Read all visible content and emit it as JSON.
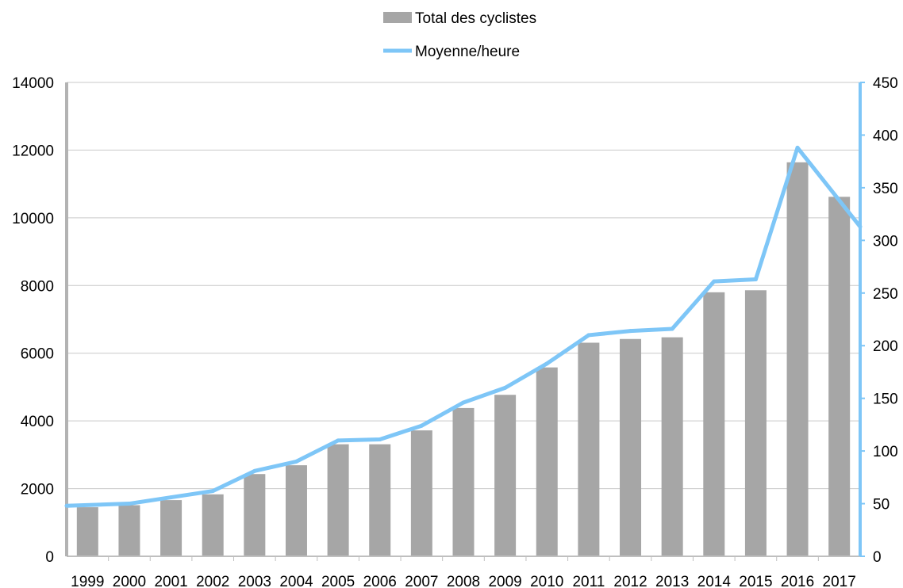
{
  "chart_data": {
    "type": "bar",
    "categories": [
      "1999",
      "2000",
      "2001",
      "2002",
      "2003",
      "2004",
      "2005",
      "2006",
      "2007",
      "2008",
      "2009",
      "2010",
      "2011",
      "2012",
      "2013",
      "2014",
      "2015",
      "2016",
      "2017"
    ],
    "series": [
      {
        "name": "Total des cyclistes",
        "type": "bar",
        "axis": "left",
        "color": "#a6a6a6",
        "values": [
          1450,
          1510,
          1660,
          1830,
          2430,
          2690,
          3310,
          3310,
          3720,
          4380,
          4770,
          5580,
          6310,
          6420,
          6470,
          7800,
          7860,
          11640,
          10620
        ]
      },
      {
        "name": "Moyenne/heure",
        "type": "line",
        "axis": "right",
        "color": "#7ec6f7",
        "values": [
          48,
          50,
          56,
          62,
          81,
          90,
          110,
          111,
          124,
          146,
          160,
          183,
          210,
          214,
          216,
          261,
          263,
          388,
          313
        ]
      }
    ],
    "y_left": {
      "min": 0,
      "max": 14000,
      "ticks": [
        0,
        2000,
        4000,
        6000,
        8000,
        10000,
        12000,
        14000
      ]
    },
    "y_right": {
      "min": 0,
      "max": 450,
      "ticks": [
        0,
        50,
        100,
        150,
        200,
        250,
        300,
        350,
        400,
        450
      ]
    },
    "grid": true,
    "legend_position": "top-center"
  }
}
